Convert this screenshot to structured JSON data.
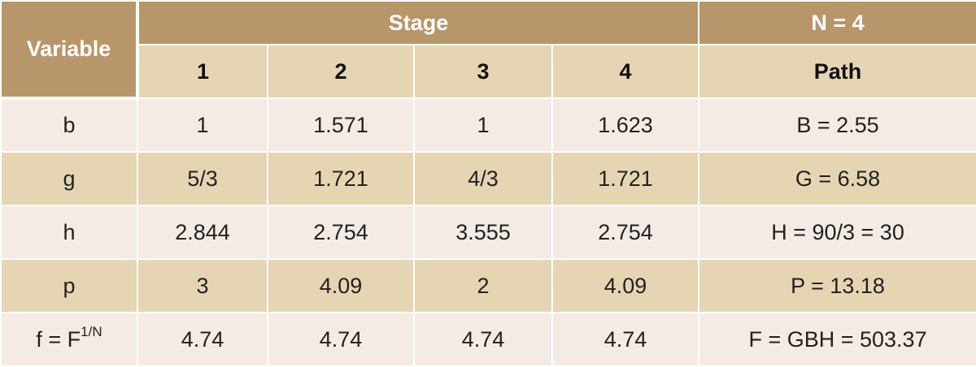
{
  "table": {
    "variable_header": "Variable",
    "stage_header": "Stage",
    "n_header": "N = 4",
    "stage_columns": [
      "1",
      "2",
      "3",
      "4"
    ],
    "path_header": "Path",
    "rows": [
      {
        "variable": "b",
        "variable_sup": "",
        "values": [
          "1",
          "1.571",
          "1",
          "1.623"
        ],
        "path": "B = 2.55"
      },
      {
        "variable": "g",
        "variable_sup": "",
        "values": [
          "5/3",
          "1.721",
          "4/3",
          "1.721"
        ],
        "path": "G = 6.58"
      },
      {
        "variable": "h",
        "variable_sup": "",
        "values": [
          "2.844",
          "2.754",
          "3.555",
          "2.754"
        ],
        "path": "H = 90/3 = 30"
      },
      {
        "variable": "p",
        "variable_sup": "",
        "values": [
          "3",
          "4.09",
          "2",
          "4.09"
        ],
        "path": "P = 13.18"
      },
      {
        "variable": "f = F",
        "variable_sup": "1/N",
        "values": [
          "4.74",
          "4.74",
          "4.74",
          "4.74"
        ],
        "path": "F = GBH = 503.37"
      }
    ]
  },
  "colors": {
    "header_dark": "#b7966a",
    "header_light": "#e6d5b2",
    "row_light": "#f3ebe4",
    "row_tan": "#e6d5b2"
  }
}
